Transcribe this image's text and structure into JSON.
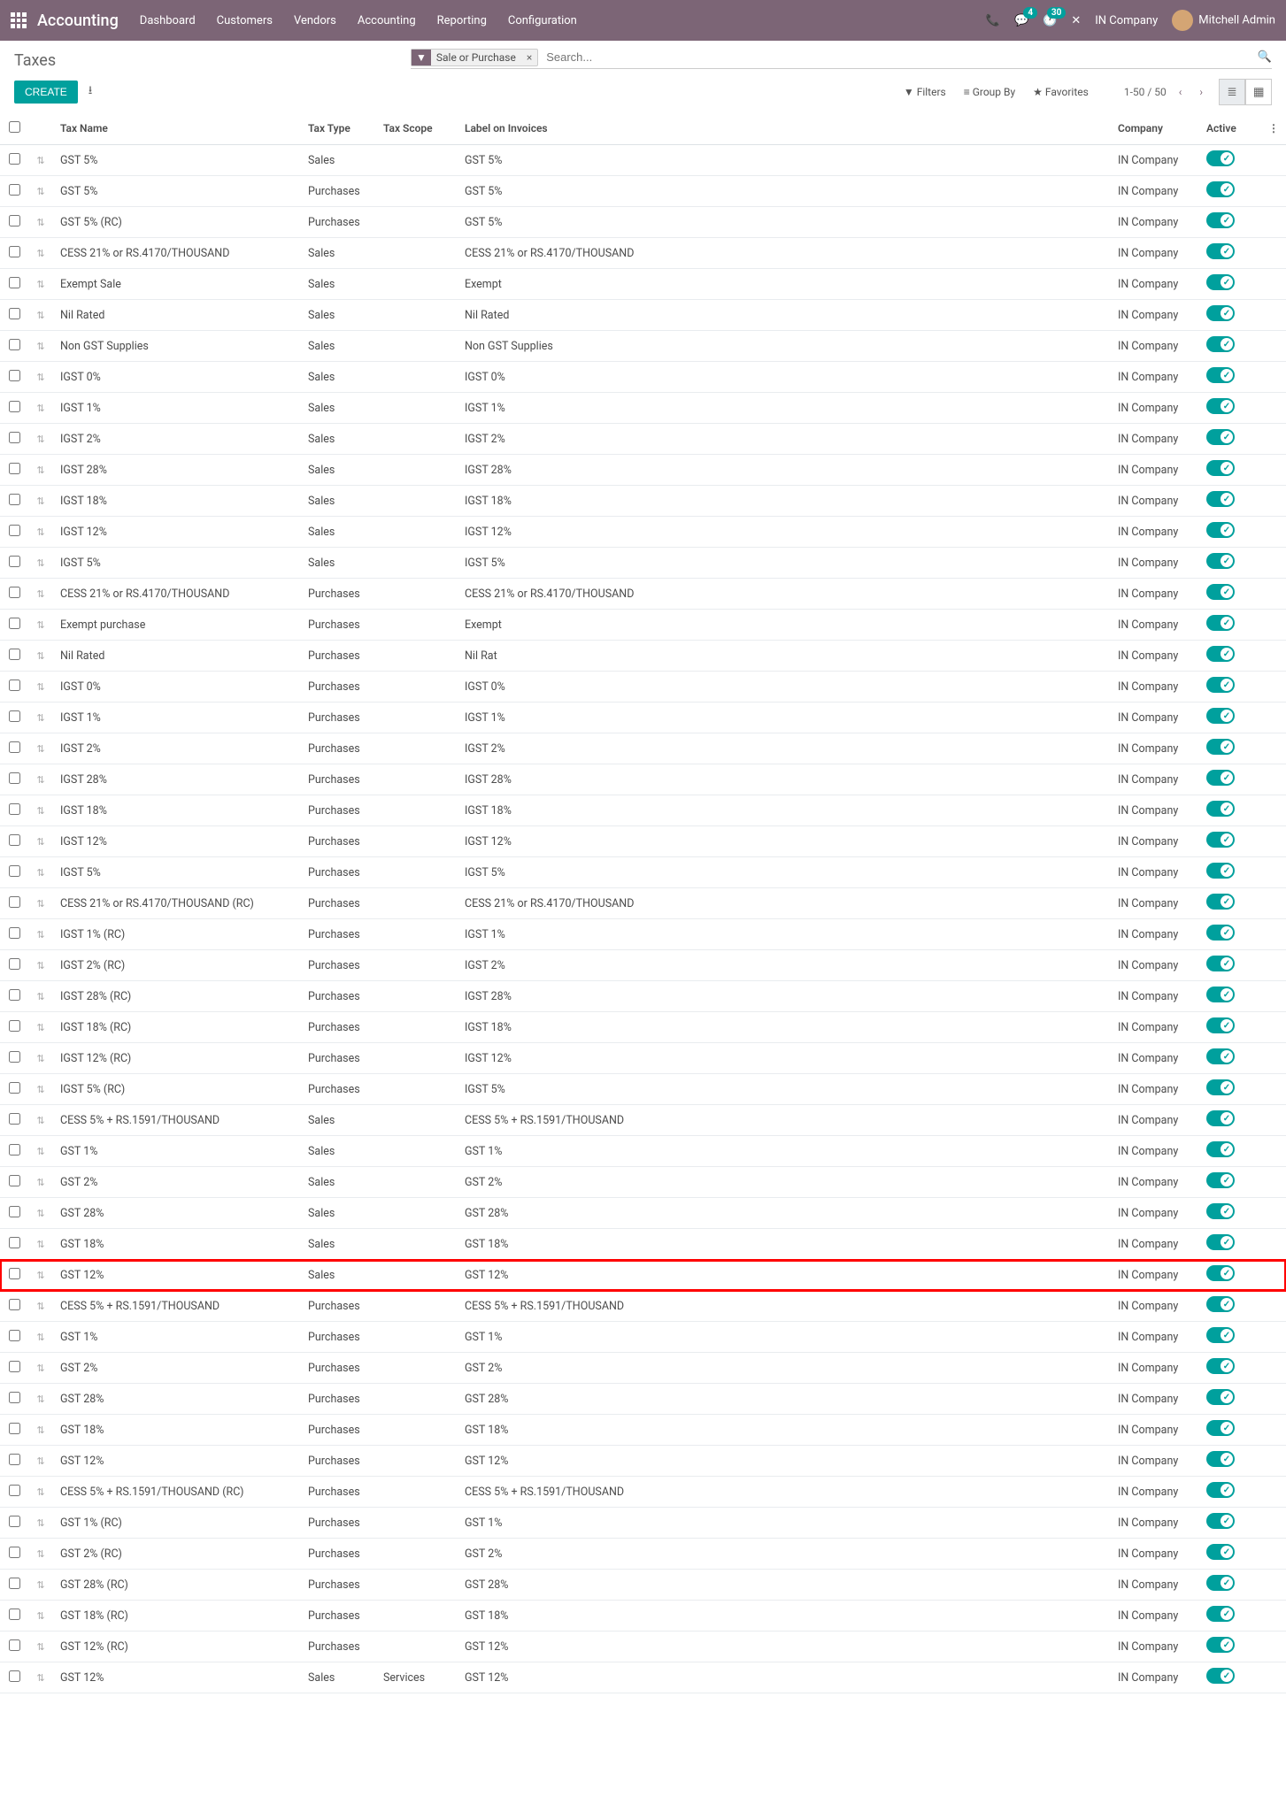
{
  "navbar": {
    "brand": "Accounting",
    "menu": [
      "Dashboard",
      "Customers",
      "Vendors",
      "Accounting",
      "Reporting",
      "Configuration"
    ],
    "chat_badge": "4",
    "activity_badge": "30",
    "company": "IN Company",
    "user": "Mitchell Admin"
  },
  "cp": {
    "title": "Taxes",
    "facet_label": "Sale or Purchase",
    "search_placeholder": "Search...",
    "create": "CREATE",
    "filters": "Filters",
    "groupby": "Group By",
    "favorites": "Favorites",
    "pager": "1-50 / 50"
  },
  "columns": {
    "name": "Tax Name",
    "type": "Tax Type",
    "scope": "Tax Scope",
    "label": "Label on Invoices",
    "company": "Company",
    "active": "Active"
  },
  "rows": [
    {
      "name": "GST 5%",
      "type": "Sales",
      "scope": "",
      "label": "GST 5%",
      "company": "IN Company",
      "hl": false
    },
    {
      "name": "GST 5%",
      "type": "Purchases",
      "scope": "",
      "label": "GST 5%",
      "company": "IN Company",
      "hl": false
    },
    {
      "name": "GST 5% (RC)",
      "type": "Purchases",
      "scope": "",
      "label": "GST 5%",
      "company": "IN Company",
      "hl": false
    },
    {
      "name": "CESS 21% or RS.4170/THOUSAND",
      "type": "Sales",
      "scope": "",
      "label": "CESS 21% or RS.4170/THOUSAND",
      "company": "IN Company",
      "hl": false
    },
    {
      "name": "Exempt Sale",
      "type": "Sales",
      "scope": "",
      "label": "Exempt",
      "company": "IN Company",
      "hl": false
    },
    {
      "name": "Nil Rated",
      "type": "Sales",
      "scope": "",
      "label": "Nil Rated",
      "company": "IN Company",
      "hl": false
    },
    {
      "name": "Non GST Supplies",
      "type": "Sales",
      "scope": "",
      "label": "Non GST Supplies",
      "company": "IN Company",
      "hl": false
    },
    {
      "name": "IGST 0%",
      "type": "Sales",
      "scope": "",
      "label": "IGST 0%",
      "company": "IN Company",
      "hl": false
    },
    {
      "name": "IGST 1%",
      "type": "Sales",
      "scope": "",
      "label": "IGST 1%",
      "company": "IN Company",
      "hl": false
    },
    {
      "name": "IGST 2%",
      "type": "Sales",
      "scope": "",
      "label": "IGST 2%",
      "company": "IN Company",
      "hl": false
    },
    {
      "name": "IGST 28%",
      "type": "Sales",
      "scope": "",
      "label": "IGST 28%",
      "company": "IN Company",
      "hl": false
    },
    {
      "name": "IGST 18%",
      "type": "Sales",
      "scope": "",
      "label": "IGST 18%",
      "company": "IN Company",
      "hl": false
    },
    {
      "name": "IGST 12%",
      "type": "Sales",
      "scope": "",
      "label": "IGST 12%",
      "company": "IN Company",
      "hl": false
    },
    {
      "name": "IGST 5%",
      "type": "Sales",
      "scope": "",
      "label": "IGST 5%",
      "company": "IN Company",
      "hl": false
    },
    {
      "name": "CESS 21% or RS.4170/THOUSAND",
      "type": "Purchases",
      "scope": "",
      "label": "CESS 21% or RS.4170/THOUSAND",
      "company": "IN Company",
      "hl": false
    },
    {
      "name": "Exempt purchase",
      "type": "Purchases",
      "scope": "",
      "label": "Exempt",
      "company": "IN Company",
      "hl": false
    },
    {
      "name": "Nil Rated",
      "type": "Purchases",
      "scope": "",
      "label": "Nil Rat",
      "company": "IN Company",
      "hl": false
    },
    {
      "name": "IGST 0%",
      "type": "Purchases",
      "scope": "",
      "label": "IGST 0%",
      "company": "IN Company",
      "hl": false
    },
    {
      "name": "IGST 1%",
      "type": "Purchases",
      "scope": "",
      "label": "IGST 1%",
      "company": "IN Company",
      "hl": false
    },
    {
      "name": "IGST 2%",
      "type": "Purchases",
      "scope": "",
      "label": "IGST 2%",
      "company": "IN Company",
      "hl": false
    },
    {
      "name": "IGST 28%",
      "type": "Purchases",
      "scope": "",
      "label": "IGST 28%",
      "company": "IN Company",
      "hl": false
    },
    {
      "name": "IGST 18%",
      "type": "Purchases",
      "scope": "",
      "label": "IGST 18%",
      "company": "IN Company",
      "hl": false
    },
    {
      "name": "IGST 12%",
      "type": "Purchases",
      "scope": "",
      "label": "IGST 12%",
      "company": "IN Company",
      "hl": false
    },
    {
      "name": "IGST 5%",
      "type": "Purchases",
      "scope": "",
      "label": "IGST 5%",
      "company": "IN Company",
      "hl": false
    },
    {
      "name": "CESS 21% or RS.4170/THOUSAND (RC)",
      "type": "Purchases",
      "scope": "",
      "label": "CESS 21% or RS.4170/THOUSAND",
      "company": "IN Company",
      "hl": false
    },
    {
      "name": "IGST 1% (RC)",
      "type": "Purchases",
      "scope": "",
      "label": "IGST 1%",
      "company": "IN Company",
      "hl": false
    },
    {
      "name": "IGST 2% (RC)",
      "type": "Purchases",
      "scope": "",
      "label": "IGST 2%",
      "company": "IN Company",
      "hl": false
    },
    {
      "name": "IGST 28% (RC)",
      "type": "Purchases",
      "scope": "",
      "label": "IGST 28%",
      "company": "IN Company",
      "hl": false
    },
    {
      "name": "IGST 18% (RC)",
      "type": "Purchases",
      "scope": "",
      "label": "IGST 18%",
      "company": "IN Company",
      "hl": false
    },
    {
      "name": "IGST 12% (RC)",
      "type": "Purchases",
      "scope": "",
      "label": "IGST 12%",
      "company": "IN Company",
      "hl": false
    },
    {
      "name": "IGST 5% (RC)",
      "type": "Purchases",
      "scope": "",
      "label": "IGST 5%",
      "company": "IN Company",
      "hl": false
    },
    {
      "name": "CESS 5% + RS.1591/THOUSAND",
      "type": "Sales",
      "scope": "",
      "label": "CESS 5% + RS.1591/THOUSAND",
      "company": "IN Company",
      "hl": false
    },
    {
      "name": "GST 1%",
      "type": "Sales",
      "scope": "",
      "label": "GST 1%",
      "company": "IN Company",
      "hl": false
    },
    {
      "name": "GST 2%",
      "type": "Sales",
      "scope": "",
      "label": "GST 2%",
      "company": "IN Company",
      "hl": false
    },
    {
      "name": "GST 28%",
      "type": "Sales",
      "scope": "",
      "label": "GST 28%",
      "company": "IN Company",
      "hl": false
    },
    {
      "name": "GST 18%",
      "type": "Sales",
      "scope": "",
      "label": "GST 18%",
      "company": "IN Company",
      "hl": false
    },
    {
      "name": "GST 12%",
      "type": "Sales",
      "scope": "",
      "label": "GST 12%",
      "company": "IN Company",
      "hl": true
    },
    {
      "name": "CESS 5% + RS.1591/THOUSAND",
      "type": "Purchases",
      "scope": "",
      "label": "CESS 5% + RS.1591/THOUSAND",
      "company": "IN Company",
      "hl": false
    },
    {
      "name": "GST 1%",
      "type": "Purchases",
      "scope": "",
      "label": "GST 1%",
      "company": "IN Company",
      "hl": false
    },
    {
      "name": "GST 2%",
      "type": "Purchases",
      "scope": "",
      "label": "GST 2%",
      "company": "IN Company",
      "hl": false
    },
    {
      "name": "GST 28%",
      "type": "Purchases",
      "scope": "",
      "label": "GST 28%",
      "company": "IN Company",
      "hl": false
    },
    {
      "name": "GST 18%",
      "type": "Purchases",
      "scope": "",
      "label": "GST 18%",
      "company": "IN Company",
      "hl": false
    },
    {
      "name": "GST 12%",
      "type": "Purchases",
      "scope": "",
      "label": "GST 12%",
      "company": "IN Company",
      "hl": false
    },
    {
      "name": "CESS 5% + RS.1591/THOUSAND (RC)",
      "type": "Purchases",
      "scope": "",
      "label": "CESS 5% + RS.1591/THOUSAND",
      "company": "IN Company",
      "hl": false
    },
    {
      "name": "GST 1% (RC)",
      "type": "Purchases",
      "scope": "",
      "label": "GST 1%",
      "company": "IN Company",
      "hl": false
    },
    {
      "name": "GST 2% (RC)",
      "type": "Purchases",
      "scope": "",
      "label": "GST 2%",
      "company": "IN Company",
      "hl": false
    },
    {
      "name": "GST 28% (RC)",
      "type": "Purchases",
      "scope": "",
      "label": "GST 28%",
      "company": "IN Company",
      "hl": false
    },
    {
      "name": "GST 18% (RC)",
      "type": "Purchases",
      "scope": "",
      "label": "GST 18%",
      "company": "IN Company",
      "hl": false
    },
    {
      "name": "GST 12% (RC)",
      "type": "Purchases",
      "scope": "",
      "label": "GST 12%",
      "company": "IN Company",
      "hl": false
    },
    {
      "name": "GST 12%",
      "type": "Sales",
      "scope": "Services",
      "label": "GST 12%",
      "company": "IN Company",
      "hl": false
    }
  ]
}
